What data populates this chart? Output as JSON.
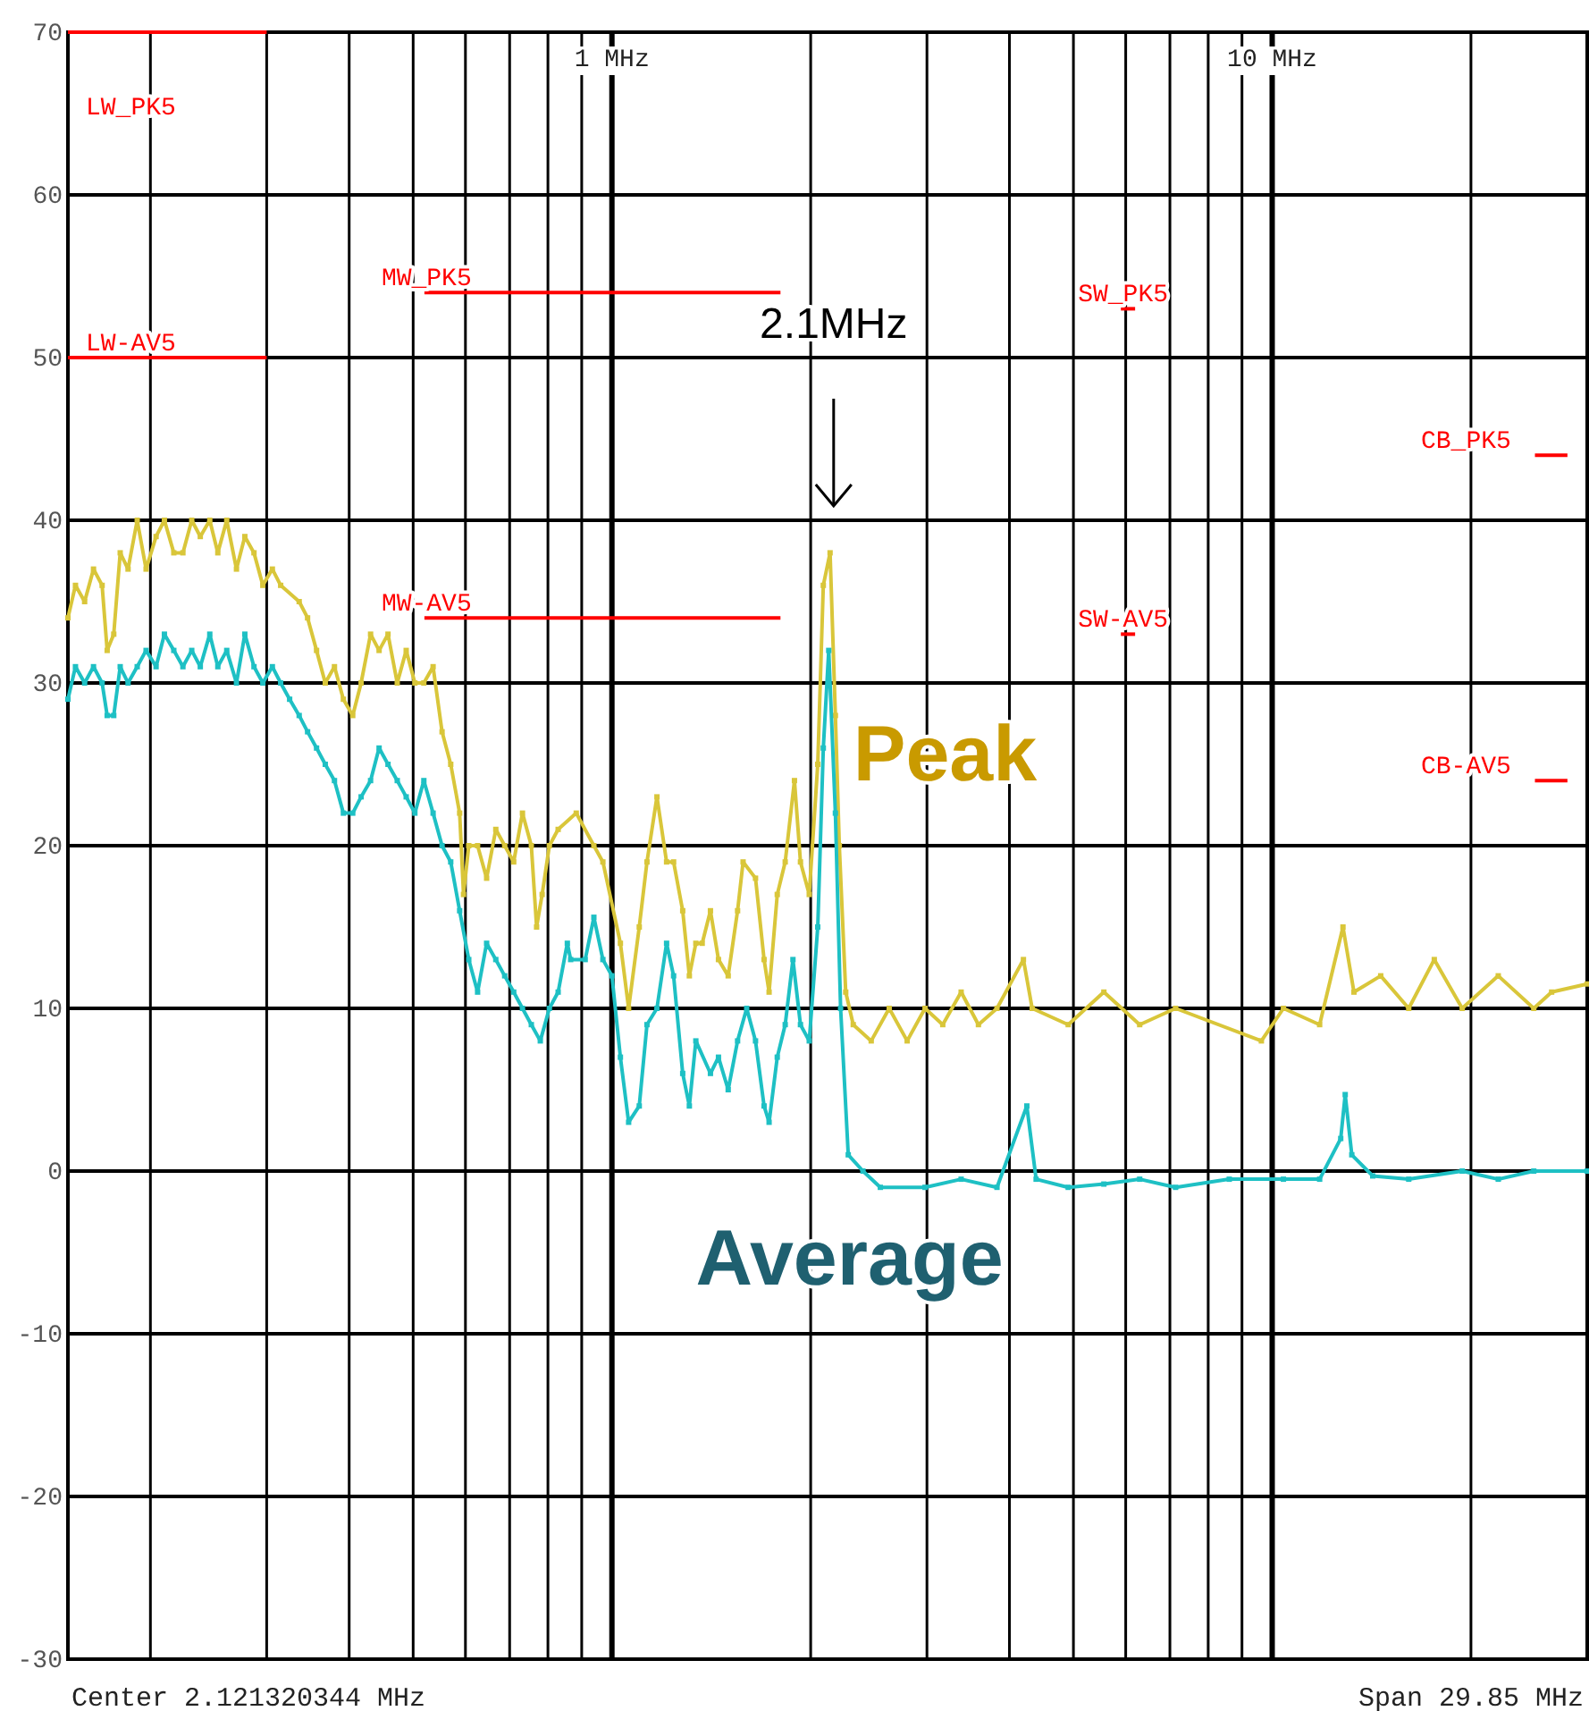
{
  "chart_data": {
    "type": "line",
    "log": "x",
    "grid": true,
    "marker": "square",
    "line_style": "solid",
    "xlim": [
      0.15,
      30
    ],
    "ylim": [
      -30,
      70
    ],
    "xticks": [
      {
        "value": 0.2,
        "label": null
      },
      {
        "value": 0.3,
        "label": null
      },
      {
        "value": 0.4,
        "label": null
      },
      {
        "value": 0.5,
        "label": null
      },
      {
        "value": 0.6,
        "label": null
      },
      {
        "value": 0.7,
        "label": null
      },
      {
        "value": 0.8,
        "label": null
      },
      {
        "value": 0.9,
        "label": null
      },
      {
        "value": 1,
        "label": "1 MHz"
      },
      {
        "value": 2,
        "label": null
      },
      {
        "value": 3,
        "label": null
      },
      {
        "value": 4,
        "label": null
      },
      {
        "value": 5,
        "label": null
      },
      {
        "value": 6,
        "label": null
      },
      {
        "value": 7,
        "label": null
      },
      {
        "value": 8,
        "label": null
      },
      {
        "value": 9,
        "label": null
      },
      {
        "value": 10,
        "label": "10 MHz"
      },
      {
        "value": 20,
        "label": null
      }
    ],
    "yticks": [
      -30,
      -20,
      -10,
      0,
      10,
      20,
      30,
      40,
      50,
      60,
      70
    ],
    "series": [
      {
        "name": "Peak",
        "color": "#d9c63a",
        "x": [
          0.15,
          0.154,
          0.159,
          0.164,
          0.169,
          0.172,
          0.176,
          0.18,
          0.185,
          0.191,
          0.197,
          0.204,
          0.21,
          0.217,
          0.224,
          0.231,
          0.238,
          0.246,
          0.253,
          0.261,
          0.27,
          0.278,
          0.287,
          0.296,
          0.306,
          0.315,
          0.336,
          0.346,
          0.357,
          0.368,
          0.38,
          0.392,
          0.405,
          0.417,
          0.431,
          0.444,
          0.458,
          0.473,
          0.488,
          0.503,
          0.519,
          0.536,
          0.553,
          0.57,
          0.588,
          0.596,
          0.607,
          0.626,
          0.646,
          0.667,
          0.688,
          0.71,
          0.732,
          0.755,
          0.769,
          0.784,
          0.804,
          0.829,
          0.883,
          0.939,
          0.969,
          1.03,
          1.06,
          1.1,
          1.13,
          1.17,
          1.21,
          1.24,
          1.28,
          1.31,
          1.34,
          1.37,
          1.41,
          1.45,
          1.5,
          1.55,
          1.58,
          1.65,
          1.7,
          1.73,
          1.78,
          1.83,
          1.89,
          1.93,
          1.99,
          2.05,
          2.09,
          2.14,
          2.18,
          2.21,
          2.26,
          2.32,
          2.47,
          2.63,
          2.8,
          2.98,
          3.17,
          3.38,
          3.59,
          3.83,
          4.2,
          4.33,
          4.91,
          5.56,
          6.3,
          7.14,
          9.63,
          10.4,
          11.8,
          12.8,
          13.3,
          14.6,
          16.1,
          17.6,
          19.4,
          22,
          24.9,
          26.5,
          30
        ],
        "values": [
          34,
          36,
          35,
          37,
          36,
          32,
          33,
          38,
          37,
          40,
          37,
          39,
          40,
          38,
          38,
          40,
          39,
          40,
          38,
          40,
          37,
          39,
          38,
          36,
          37,
          36,
          35,
          34,
          32,
          30,
          31,
          29,
          28,
          30,
          33,
          32,
          33,
          30,
          32,
          30,
          30,
          31,
          27,
          25,
          22,
          17,
          20,
          20,
          18,
          21,
          20,
          19,
          22,
          20,
          15,
          17,
          20,
          21,
          22,
          20,
          19,
          14,
          10,
          15,
          19,
          23,
          19,
          19,
          16,
          12,
          14,
          14,
          16,
          13,
          12,
          16,
          19,
          18,
          13,
          11,
          17,
          19,
          24,
          19,
          17,
          25,
          36,
          38,
          28,
          20,
          11,
          9,
          8,
          10,
          8,
          10,
          9,
          11,
          9,
          10,
          13,
          10,
          9,
          11,
          9,
          10,
          8,
          10,
          9,
          15,
          11,
          12,
          10,
          13,
          10,
          12,
          10,
          11,
          11.5
        ]
      },
      {
        "name": "Average",
        "color": "#1ec0c4",
        "x": [
          0.15,
          0.154,
          0.159,
          0.164,
          0.169,
          0.172,
          0.176,
          0.18,
          0.185,
          0.191,
          0.197,
          0.204,
          0.21,
          0.217,
          0.224,
          0.231,
          0.238,
          0.246,
          0.253,
          0.261,
          0.27,
          0.278,
          0.287,
          0.296,
          0.306,
          0.315,
          0.325,
          0.336,
          0.346,
          0.357,
          0.368,
          0.38,
          0.392,
          0.405,
          0.417,
          0.431,
          0.444,
          0.458,
          0.473,
          0.488,
          0.503,
          0.519,
          0.536,
          0.553,
          0.57,
          0.588,
          0.607,
          0.626,
          0.646,
          0.667,
          0.688,
          0.71,
          0.732,
          0.755,
          0.779,
          0.804,
          0.829,
          0.856,
          0.866,
          0.911,
          0.939,
          0.969,
          1.0,
          1.03,
          1.06,
          1.1,
          1.13,
          1.17,
          1.21,
          1.24,
          1.28,
          1.31,
          1.34,
          1.41,
          1.45,
          1.5,
          1.55,
          1.6,
          1.65,
          1.7,
          1.73,
          1.78,
          1.83,
          1.88,
          1.93,
          1.99,
          2.05,
          2.09,
          2.13,
          2.18,
          2.22,
          2.28,
          2.4,
          2.55,
          2.98,
          3.38,
          3.83,
          4.25,
          4.39,
          4.91,
          5.56,
          6.3,
          7.14,
          8.61,
          10.4,
          11.8,
          12.7,
          12.9,
          13.2,
          14.2,
          16.1,
          19.4,
          22,
          24.9,
          30
        ],
        "values": [
          29,
          31,
          30,
          31,
          30,
          28,
          28,
          31,
          30,
          31,
          32,
          31,
          33,
          32,
          31,
          32,
          31,
          33,
          31,
          32,
          30,
          33,
          31,
          30,
          31,
          30,
          29,
          28,
          27,
          26,
          25,
          24,
          22,
          22,
          23,
          24,
          26,
          25,
          24,
          23,
          22,
          24,
          22,
          20,
          19,
          16,
          13,
          11,
          14,
          13,
          12,
          11,
          10,
          9,
          8,
          10,
          11,
          14,
          13,
          13,
          15.6,
          13,
          12,
          7,
          3,
          4,
          9,
          10,
          14,
          12,
          6,
          4,
          8,
          6,
          7,
          5,
          8,
          10,
          8,
          4,
          3,
          7,
          9,
          13,
          9,
          8,
          15,
          26,
          32,
          22,
          10,
          1,
          0,
          -1,
          -1,
          -0.5,
          -1,
          4,
          -0.5,
          -1,
          -0.8,
          -0.5,
          -1,
          -0.5,
          -0.5,
          -0.5,
          2,
          4.7,
          1,
          -0.3,
          -0.5,
          0,
          -0.5,
          0,
          0
        ]
      },
      {
        "name": "LW_PK5",
        "color": "#ff0000",
        "marker": "none",
        "x": [
          0.15,
          0.3
        ],
        "values": [
          70,
          70
        ]
      },
      {
        "name": "LW-AV5",
        "color": "#ff0000",
        "marker": "none",
        "x": [
          0.15,
          0.3
        ],
        "values": [
          50,
          50
        ]
      },
      {
        "name": "MW_PK5",
        "color": "#ff0000",
        "marker": "none",
        "x": [
          0.52,
          1.8
        ],
        "values": [
          54,
          54
        ]
      },
      {
        "name": "MW-AV5",
        "color": "#ff0000",
        "marker": "none",
        "x": [
          0.52,
          1.8
        ],
        "values": [
          34,
          34
        ]
      },
      {
        "name": "SW_PK5",
        "color": "#ff0000",
        "marker": "none",
        "x": [
          5.9,
          6.2
        ],
        "values": [
          53,
          53
        ]
      },
      {
        "name": "SW-AV5",
        "color": "#ff0000",
        "marker": "none",
        "x": [
          5.9,
          6.2
        ],
        "values": [
          33,
          33
        ]
      },
      {
        "name": "CB_PK5",
        "color": "#ff0000",
        "marker": "none",
        "x": [
          25,
          28
        ],
        "values": [
          44,
          44
        ]
      },
      {
        "name": "CB-AV5",
        "color": "#ff0000",
        "marker": "none",
        "x": [
          25,
          28
        ],
        "values": [
          24,
          24
        ]
      }
    ],
    "annotations": [
      "2.1MHz",
      "Center 2.121320344 MHz",
      "Span 29.85 MHz"
    ]
  }
}
